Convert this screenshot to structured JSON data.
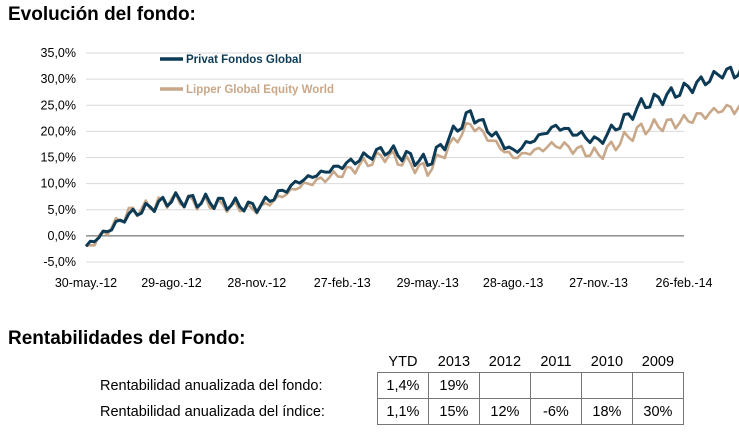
{
  "section_chart": {
    "title": "Evolución del fondo:"
  },
  "section_table": {
    "title": "Rentabilidades del Fondo:"
  },
  "chart_data": {
    "type": "line",
    "title": "",
    "xlabel": "",
    "ylabel": "",
    "ylim": [
      -5,
      35
    ],
    "y_ticks": [
      "35,0%",
      "30,0%",
      "25,0%",
      "20,0%",
      "15,0%",
      "10,0%",
      "5,0%",
      "0,0%",
      "-5,0%"
    ],
    "y_tick_values": [
      35,
      30,
      25,
      20,
      15,
      10,
      5,
      0,
      -5
    ],
    "x_ticks": [
      "30-may.-12",
      "29-ago.-12",
      "28-nov.-12",
      "27-feb.-13",
      "29-may.-13",
      "28-ago.-13",
      "27-nov.-13",
      "26-feb.-14"
    ],
    "grid": "horizontal",
    "legend_position": "top-left",
    "x_index": [
      0,
      0.5,
      1,
      1.5,
      2,
      2.5,
      3,
      3.5,
      4,
      4.5,
      5,
      5.5,
      6,
      6.5,
      7,
      7.5,
      7.95
    ],
    "series": [
      {
        "name": "Privat Fondos Global",
        "color": "#0d3b56",
        "values": [
          -2.0,
          4.0,
          7.0,
          6.5,
          5.5,
          10.5,
          13.5,
          16.5,
          14.0,
          23.5,
          16.0,
          21.0,
          18.0,
          25.0,
          28.0,
          31.5,
          30.5
        ]
      },
      {
        "name": "Lipper Global Equity World",
        "color": "#c9a889",
        "values": [
          -2.5,
          4.5,
          7.0,
          6.0,
          5.0,
          9.5,
          12.0,
          15.5,
          12.5,
          21.5,
          15.0,
          17.5,
          15.5,
          20.5,
          22.0,
          24.5,
          24.0
        ]
      }
    ]
  },
  "returns_table": {
    "headers": [
      "YTD",
      "2013",
      "2012",
      "2011",
      "2010",
      "2009"
    ],
    "rows": [
      {
        "label": "Rentabilidad anualizada del fondo:",
        "values": [
          "1,4%",
          "19%",
          "",
          "",
          "",
          ""
        ]
      },
      {
        "label": "Rentabilidad anualizada del índice:",
        "values": [
          "1,1%",
          "15%",
          "12%",
          "-6%",
          "18%",
          "30%"
        ]
      }
    ]
  }
}
